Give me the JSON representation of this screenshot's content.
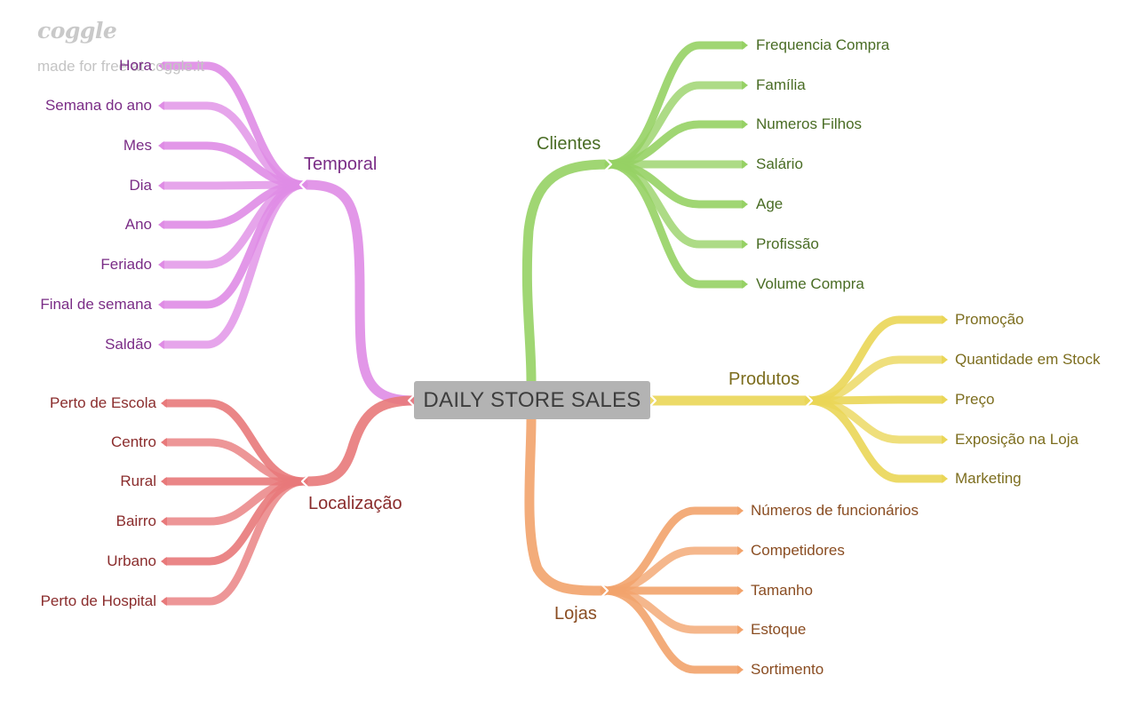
{
  "watermark": {
    "logo": "coggle",
    "made_for": "made for free at coggle.it"
  },
  "center": {
    "label": "DAILY STORE SALES"
  },
  "colors": {
    "temporal": "#df8ce5",
    "localizacao": "#e8797a",
    "clientes": "#96d164",
    "produtos": "#ead657",
    "lojas": "#f2a36b"
  },
  "branches": {
    "temporal": {
      "label": "Temporal",
      "items": [
        "Hora",
        "Semana do ano",
        "Mes",
        "Dia",
        "Ano",
        "Feriado",
        "Final de semana",
        "Saldão"
      ]
    },
    "localizacao": {
      "label": "Localização",
      "items": [
        "Perto de Escola",
        "Centro",
        "Rural",
        "Bairro",
        "Urbano",
        "Perto de Hospital"
      ]
    },
    "clientes": {
      "label": "Clientes",
      "items": [
        "Frequencia Compra",
        "Família",
        "Numeros Filhos",
        "Salário",
        "Age",
        "Profissão",
        "Volume Compra"
      ]
    },
    "produtos": {
      "label": "Produtos",
      "items": [
        "Promoção",
        "Quantidade em Stock",
        "Preço",
        "Exposição na Loja",
        "Marketing"
      ]
    },
    "lojas": {
      "label": "Lojas",
      "items": [
        "Números de funcionários",
        "Competidores",
        "Tamanho",
        "Estoque",
        "Sortimento"
      ]
    }
  }
}
